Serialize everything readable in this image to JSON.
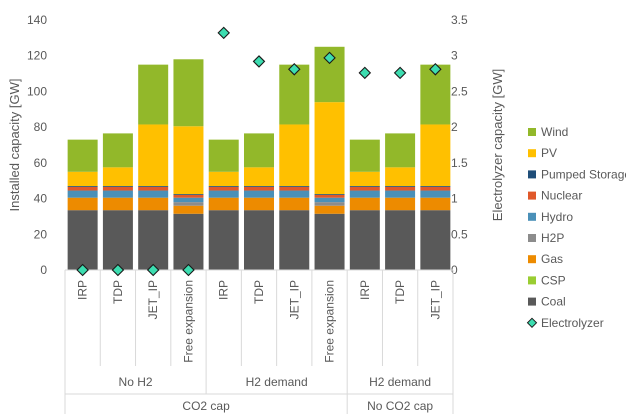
{
  "chart_data": {
    "type": "bar",
    "stacked": true,
    "title": "",
    "ylabel": "Installed capacity [GW]",
    "y2label": "Electrolyzer capacity [GW]",
    "ylim": [
      0,
      140
    ],
    "y2lim": [
      0,
      3.5
    ],
    "yticks": [
      "0",
      "20",
      "40",
      "60",
      "80",
      "100",
      "120",
      "140"
    ],
    "y2ticks": [
      "0",
      "0.5",
      "1",
      "1.5",
      "2",
      "2.5",
      "3",
      "3.5"
    ],
    "grid": false,
    "legend_position": "right",
    "categories": [
      "IRP",
      "TDP",
      "JET_IP",
      "Free expansion",
      "IRP",
      "TDP",
      "JET_IP",
      "Free expansion",
      "IRP",
      "TDP",
      "JET_IP"
    ],
    "group_labels": [
      {
        "label": "No H2",
        "span": [
          0,
          3
        ]
      },
      {
        "label": "H2 demand",
        "span": [
          4,
          7
        ]
      },
      {
        "label": "H2 demand",
        "span": [
          8,
          10
        ]
      }
    ],
    "outer_group_labels": [
      {
        "label": "CO2 cap",
        "span": [
          0,
          7
        ]
      },
      {
        "label": "No CO2 cap",
        "span": [
          8,
          10
        ]
      }
    ],
    "series": [
      {
        "name": "Coal",
        "color": "#595959",
        "values": [
          33.5,
          33.5,
          33.5,
          31.5,
          33.5,
          33.5,
          33.5,
          31.5,
          33.5,
          33.5,
          33.5
        ]
      },
      {
        "name": "CSP",
        "color": "#9ACD32",
        "values": [
          0,
          0,
          0,
          0,
          0,
          0,
          0,
          0,
          0,
          0,
          0
        ]
      },
      {
        "name": "Gas",
        "color": "#ED8B00",
        "values": [
          7,
          7,
          7,
          4.5,
          7,
          7,
          7,
          4.5,
          7,
          7,
          7
        ]
      },
      {
        "name": "H2P",
        "color": "#8C8C8C",
        "values": [
          0,
          0,
          0,
          2,
          0,
          0,
          0,
          2,
          0,
          0,
          0
        ]
      },
      {
        "name": "Hydro",
        "color": "#4A90B8",
        "values": [
          4,
          4,
          4,
          2.5,
          4,
          4,
          4,
          2.5,
          4,
          4,
          4
        ]
      },
      {
        "name": "Nuclear",
        "color": "#E0582A",
        "values": [
          2,
          2,
          2,
          1.5,
          2,
          2,
          2,
          1.5,
          2,
          2,
          2
        ]
      },
      {
        "name": "Pumped Storage",
        "color": "#1F4E79",
        "values": [
          0.5,
          0.5,
          0.5,
          0.5,
          0.5,
          0.5,
          0.5,
          0.5,
          0.5,
          0.5,
          0.5
        ]
      },
      {
        "name": "PV",
        "color": "#FFC000",
        "values": [
          8,
          10.5,
          34.5,
          38,
          8,
          10.5,
          34.5,
          51.5,
          8,
          10.5,
          34.5
        ]
      },
      {
        "name": "Wind",
        "color": "#92B82A",
        "values": [
          18,
          19,
          33.5,
          37.5,
          18,
          19,
          33.5,
          31,
          18,
          19,
          33.5
        ]
      }
    ],
    "electrolyzer": {
      "name": "Electrolyzer",
      "color": "#3CDDB0",
      "axis": "secondary",
      "values": [
        0,
        0,
        0,
        0,
        3.32,
        2.92,
        2.81,
        2.97,
        2.76,
        2.76,
        2.81
      ]
    },
    "legend_order": [
      "Wind",
      "PV",
      "Pumped Storage",
      "Nuclear",
      "Hydro",
      "H2P",
      "Gas",
      "CSP",
      "Coal",
      "Electrolyzer"
    ]
  }
}
